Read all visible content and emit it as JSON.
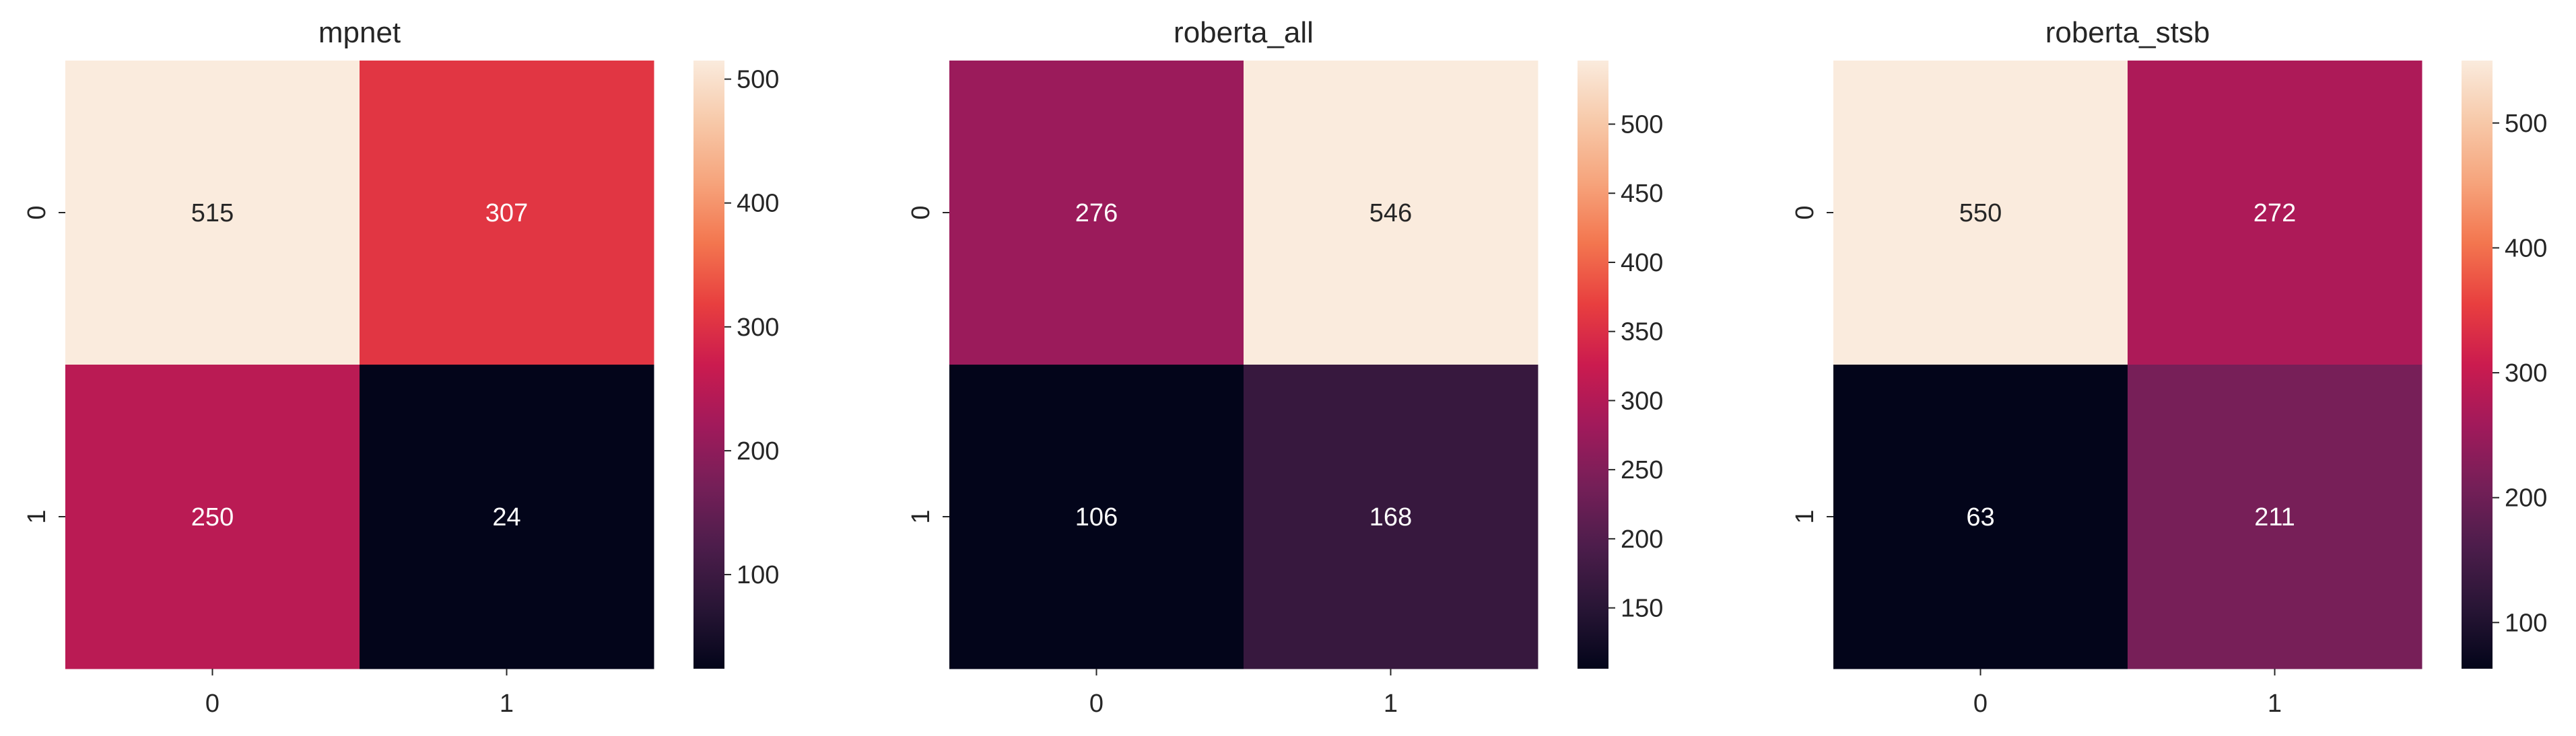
{
  "chart_data": [
    {
      "type": "heatmap",
      "title": "mpnet",
      "x_categories": [
        "0",
        "1"
      ],
      "y_categories": [
        "0",
        "1"
      ],
      "values": [
        [
          515,
          307
        ],
        [
          250,
          24
        ]
      ],
      "colormap": "rocket",
      "colorbar": {
        "range": [
          24,
          515
        ],
        "ticks": [
          100,
          200,
          300,
          400,
          500
        ]
      },
      "xlabel": "",
      "ylabel": ""
    },
    {
      "type": "heatmap",
      "title": "roberta_all",
      "x_categories": [
        "0",
        "1"
      ],
      "y_categories": [
        "0",
        "1"
      ],
      "values": [
        [
          276,
          546
        ],
        [
          106,
          168
        ]
      ],
      "colormap": "rocket",
      "colorbar": {
        "range": [
          106,
          546
        ],
        "ticks": [
          150,
          200,
          250,
          300,
          350,
          400,
          450,
          500
        ]
      },
      "xlabel": "",
      "ylabel": ""
    },
    {
      "type": "heatmap",
      "title": "roberta_stsb",
      "x_categories": [
        "0",
        "1"
      ],
      "y_categories": [
        "0",
        "1"
      ],
      "values": [
        [
          550,
          272
        ],
        [
          63,
          211
        ]
      ],
      "colormap": "rocket",
      "colorbar": {
        "range": [
          63,
          550
        ],
        "ticks": [
          100,
          200,
          300,
          400,
          500
        ]
      },
      "xlabel": "",
      "ylabel": ""
    }
  ],
  "colors": {
    "rocket": [
      "#03051a",
      "#281535",
      "#4c1d4b",
      "#751f58",
      "#a11a5b",
      "#cb1b4f",
      "#e83f3f",
      "#f3764f",
      "#f6a47c",
      "#f7c9a9",
      "#faebdd"
    ],
    "dark_cell_text": "#262626",
    "light_cell_text": "#ffffff",
    "axis_text": "#262626"
  }
}
